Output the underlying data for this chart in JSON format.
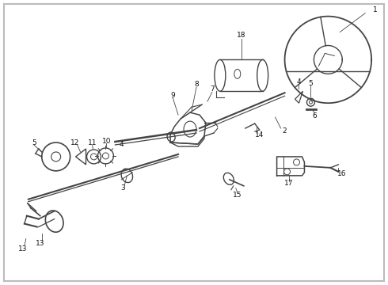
{
  "background_color": "#ffffff",
  "line_color": "#444444",
  "text_color": "#111111",
  "fig_width": 4.9,
  "fig_height": 3.6,
  "dpi": 100
}
